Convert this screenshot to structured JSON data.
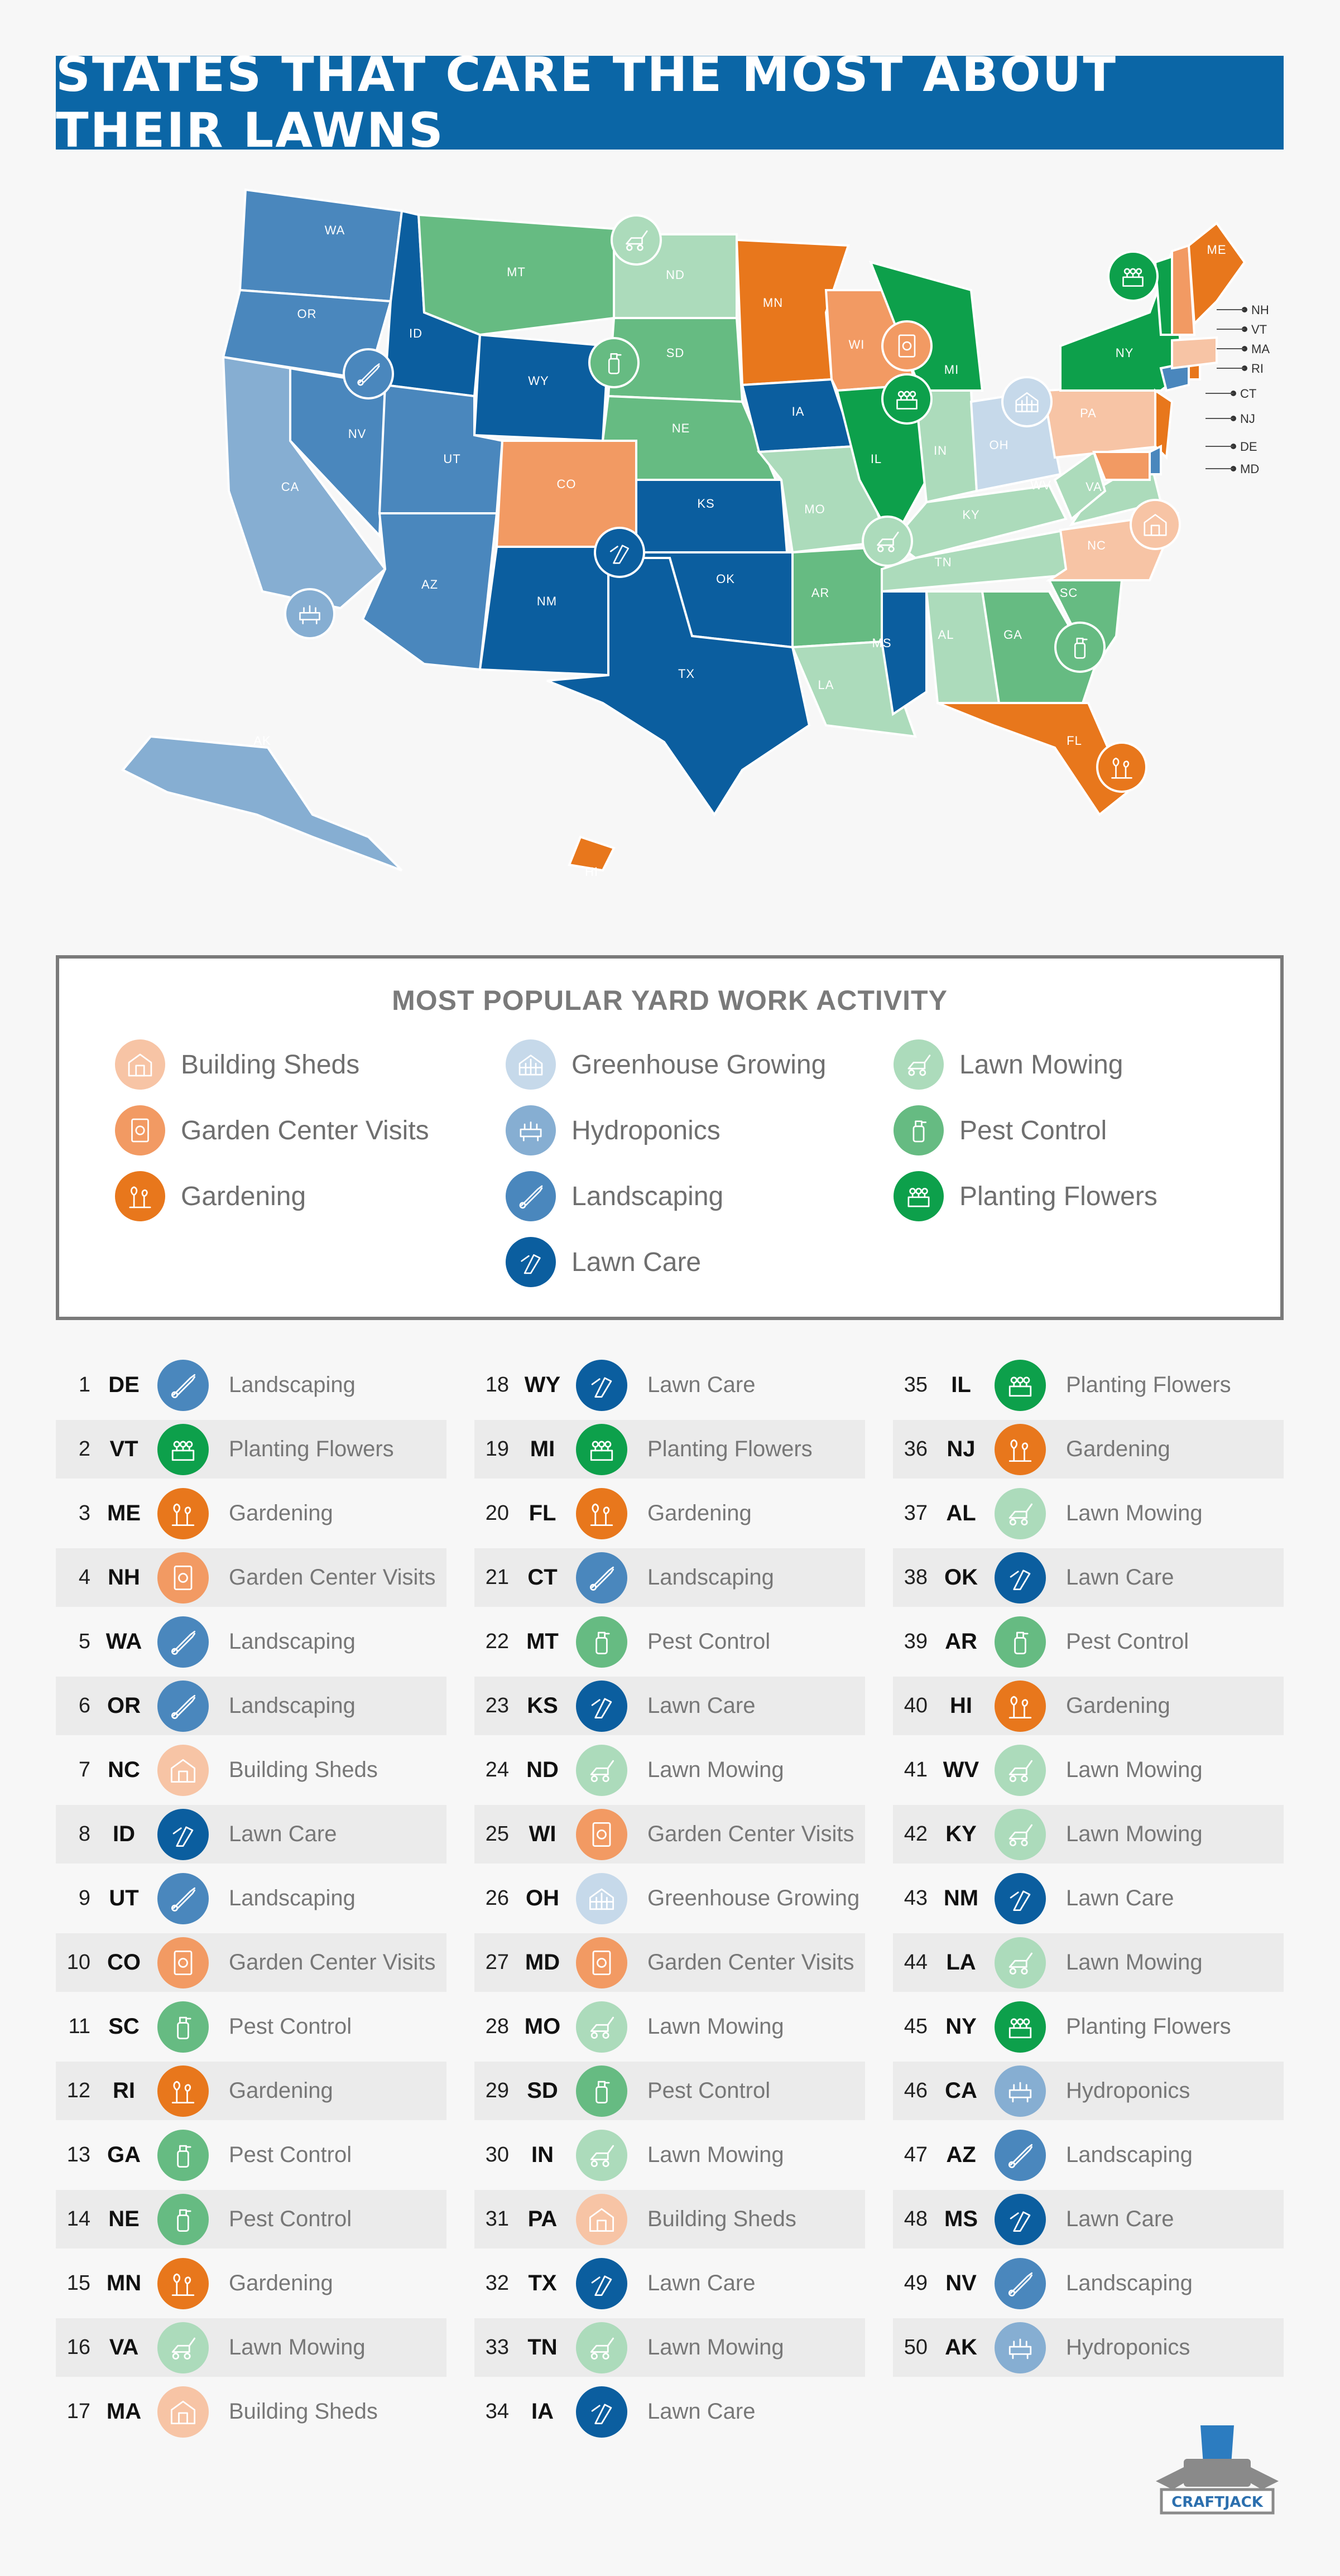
{
  "title": "STATES THAT CARE THE MOST ABOUT THEIR LAWNS",
  "legend": {
    "title": "MOST POPULAR YARD WORK ACTIVITY",
    "items": [
      {
        "label": "Building Sheds",
        "color": "#f7c4a5",
        "icon": "shed-icon"
      },
      {
        "label": "Garden Center Visits",
        "color": "#f29a63",
        "icon": "seed-packet-icon"
      },
      {
        "label": "Gardening",
        "color": "#e8771c",
        "icon": "plant-icon"
      },
      {
        "label": "Greenhouse Growing",
        "color": "#c6d9ea",
        "icon": "greenhouse-icon"
      },
      {
        "label": "Hydroponics",
        "color": "#86aed2",
        "icon": "hydroponics-icon"
      },
      {
        "label": "Landscaping",
        "color": "#4a87bd",
        "icon": "shears-icon"
      },
      {
        "label": "Lawn Care",
        "color": "#0b5e9f",
        "icon": "trimmer-icon"
      },
      {
        "label": "Lawn Mowing",
        "color": "#acdbbb",
        "icon": "mower-icon"
      },
      {
        "label": "Pest Control",
        "color": "#66bb82",
        "icon": "spray-bottle-icon"
      },
      {
        "label": "Planting Flowers",
        "color": "#0da04b",
        "icon": "flower-box-icon"
      }
    ]
  },
  "chart_data": {
    "type": "choropleth",
    "title": "STATES THAT CARE THE MOST ABOUT THEIR LAWNS",
    "subtitle": "MOST POPULAR YARD WORK ACTIVITY",
    "callout_states": [
      "NH",
      "VT",
      "MA",
      "RI",
      "CT",
      "NJ",
      "DE",
      "MD"
    ],
    "rankings": [
      {
        "rank": "1",
        "state": "DE",
        "activity": "Landscaping"
      },
      {
        "rank": "2",
        "state": "VT",
        "activity": "Planting Flowers"
      },
      {
        "rank": "3",
        "state": "ME",
        "activity": "Gardening"
      },
      {
        "rank": "4",
        "state": "NH",
        "activity": "Garden Center Visits"
      },
      {
        "rank": "5",
        "state": "WA",
        "activity": "Landscaping"
      },
      {
        "rank": "6",
        "state": "OR",
        "activity": "Landscaping"
      },
      {
        "rank": "7",
        "state": "NC",
        "activity": "Building Sheds"
      },
      {
        "rank": "8",
        "state": "ID",
        "activity": "Lawn Care"
      },
      {
        "rank": "9",
        "state": "UT",
        "activity": "Landscaping"
      },
      {
        "rank": "10",
        "state": "CO",
        "activity": "Garden Center Visits"
      },
      {
        "rank": "11",
        "state": "SC",
        "activity": "Pest Control"
      },
      {
        "rank": "12",
        "state": "RI",
        "activity": "Gardening"
      },
      {
        "rank": "13",
        "state": "GA",
        "activity": "Pest Control"
      },
      {
        "rank": "14",
        "state": "NE",
        "activity": "Pest Control"
      },
      {
        "rank": "15",
        "state": "MN",
        "activity": "Gardening"
      },
      {
        "rank": "16",
        "state": "VA",
        "activity": "Lawn Mowing"
      },
      {
        "rank": "17",
        "state": "MA",
        "activity": "Building Sheds"
      },
      {
        "rank": "18",
        "state": "WY",
        "activity": "Lawn Care"
      },
      {
        "rank": "19",
        "state": "MI",
        "activity": "Planting Flowers"
      },
      {
        "rank": "20",
        "state": "FL",
        "activity": "Gardening"
      },
      {
        "rank": "21",
        "state": "CT",
        "activity": "Landscaping"
      },
      {
        "rank": "22",
        "state": "MT",
        "activity": "Pest Control"
      },
      {
        "rank": "23",
        "state": "KS",
        "activity": "Lawn Care"
      },
      {
        "rank": "24",
        "state": "ND",
        "activity": "Lawn Mowing"
      },
      {
        "rank": "25",
        "state": "WI",
        "activity": "Garden Center Visits"
      },
      {
        "rank": "26",
        "state": "OH",
        "activity": "Greenhouse Growing"
      },
      {
        "rank": "27",
        "state": "MD",
        "activity": "Garden Center Visits"
      },
      {
        "rank": "28",
        "state": "MO",
        "activity": "Lawn Mowing"
      },
      {
        "rank": "29",
        "state": "SD",
        "activity": "Pest Control"
      },
      {
        "rank": "30",
        "state": "IN",
        "activity": "Lawn Mowing"
      },
      {
        "rank": "31",
        "state": "PA",
        "activity": "Building Sheds"
      },
      {
        "rank": "32",
        "state": "TX",
        "activity": "Lawn Care"
      },
      {
        "rank": "33",
        "state": "TN",
        "activity": "Lawn Mowing"
      },
      {
        "rank": "34",
        "state": "IA",
        "activity": "Lawn Care"
      },
      {
        "rank": "35",
        "state": "IL",
        "activity": "Planting Flowers"
      },
      {
        "rank": "36",
        "state": "NJ",
        "activity": "Gardening"
      },
      {
        "rank": "37",
        "state": "AL",
        "activity": "Lawn Mowing"
      },
      {
        "rank": "38",
        "state": "OK",
        "activity": "Lawn Care"
      },
      {
        "rank": "39",
        "state": "AR",
        "activity": "Pest Control"
      },
      {
        "rank": "40",
        "state": "HI",
        "activity": "Gardening"
      },
      {
        "rank": "41",
        "state": "WV",
        "activity": "Lawn Mowing"
      },
      {
        "rank": "42",
        "state": "KY",
        "activity": "Lawn Mowing"
      },
      {
        "rank": "43",
        "state": "NM",
        "activity": "Lawn Care"
      },
      {
        "rank": "44",
        "state": "LA",
        "activity": "Lawn Mowing"
      },
      {
        "rank": "45",
        "state": "NY",
        "activity": "Planting Flowers"
      },
      {
        "rank": "46",
        "state": "CA",
        "activity": "Hydroponics"
      },
      {
        "rank": "47",
        "state": "AZ",
        "activity": "Landscaping"
      },
      {
        "rank": "48",
        "state": "MS",
        "activity": "Lawn Care"
      },
      {
        "rank": "49",
        "state": "NV",
        "activity": "Landscaping"
      },
      {
        "rank": "50",
        "state": "AK",
        "activity": "Hydroponics"
      }
    ]
  },
  "brand": {
    "name": "CRAFTJACK"
  }
}
